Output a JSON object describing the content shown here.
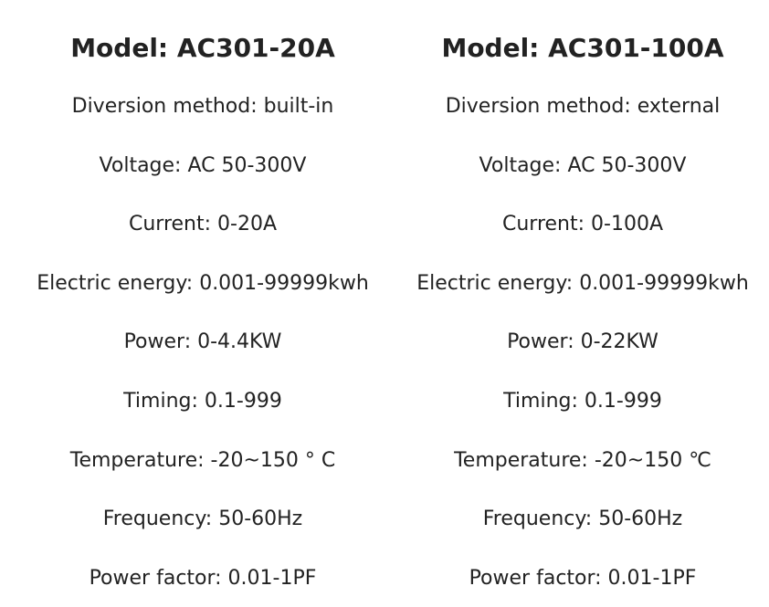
{
  "columns": [
    {
      "title": "Model: AC301-20A",
      "specs": [
        "Diversion method: built-in",
        "Voltage: AC 50-300V",
        "Current: 0-20A",
        "Electric energy: 0.001-99999kwh",
        "Power: 0-4.4KW",
        "Timing: 0.1-999",
        "Temperature: -20~150 ° C",
        "Frequency: 50-60Hz",
        "Power factor: 0.01-1PF"
      ]
    },
    {
      "title": "Model: AC301-100A",
      "specs": [
        "Diversion method: external",
        "Voltage: AC 50-300V",
        "Current: 0-100A",
        "Electric energy: 0.001-99999kwh",
        "Power: 0-22KW",
        "Timing: 0.1-999",
        "Temperature: -20~150 ℃",
        "Frequency: 50-60Hz",
        "Power factor: 0.01-1PF"
      ]
    }
  ]
}
